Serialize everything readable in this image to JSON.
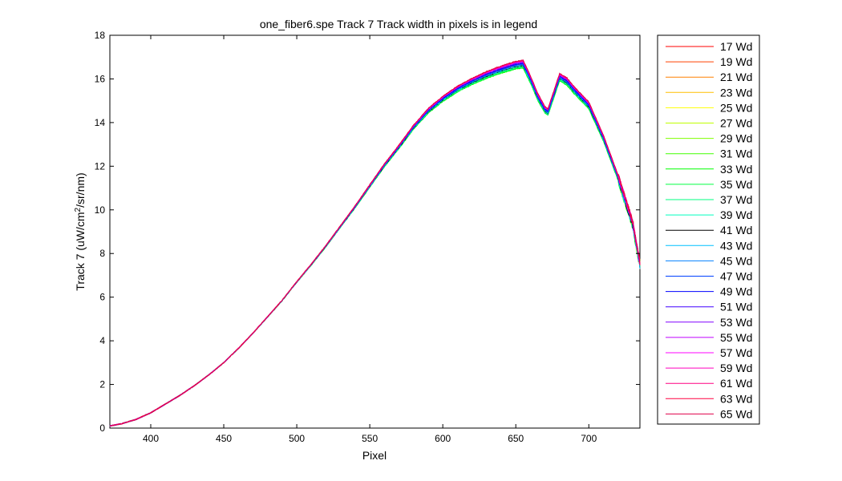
{
  "chart_data": {
    "type": "line",
    "title": "one_fiber6.spe   Track 7     Track width in pixels is in legend",
    "xlabel": "Pixel",
    "ylabel": "Track 7 (uW/cm²/sr/nm)",
    "ylabel_parts": {
      "main": "Track 7 (uW/cm",
      "sup": "2",
      "tail": "/sr/nm)"
    },
    "xlim": [
      372,
      735
    ],
    "ylim": [
      0,
      18
    ],
    "xticks": [
      400,
      450,
      500,
      550,
      600,
      650,
      700
    ],
    "yticks": [
      0,
      2,
      4,
      6,
      8,
      10,
      12,
      14,
      16,
      18
    ],
    "grid": false,
    "legend_position": "outside-right",
    "base_curve": {
      "x": [
        372,
        380,
        390,
        400,
        410,
        420,
        430,
        440,
        450,
        460,
        470,
        480,
        490,
        500,
        510,
        520,
        530,
        540,
        550,
        560,
        570,
        580,
        590,
        600,
        610,
        620,
        630,
        640,
        650,
        655,
        660,
        665,
        670,
        672,
        675,
        680,
        685,
        690,
        700,
        710,
        720,
        730,
        735
      ],
      "y": [
        0.1,
        0.2,
        0.4,
        0.7,
        1.1,
        1.5,
        1.95,
        2.45,
        3.0,
        3.65,
        4.35,
        5.1,
        5.85,
        6.7,
        7.5,
        8.35,
        9.25,
        10.15,
        11.1,
        12.05,
        12.9,
        13.8,
        14.55,
        15.1,
        15.55,
        15.9,
        16.2,
        16.45,
        16.65,
        16.7,
        16.0,
        15.2,
        14.6,
        14.5,
        15.1,
        16.1,
        15.9,
        15.5,
        14.8,
        13.3,
        11.5,
        9.4,
        7.5
      ]
    },
    "series": [
      {
        "name": "17 Wd",
        "color": "#ff0000",
        "offset": 0.0
      },
      {
        "name": "19 Wd",
        "color": "#ff4000",
        "offset": -0.02
      },
      {
        "name": "21 Wd",
        "color": "#ff8000",
        "offset": -0.04
      },
      {
        "name": "23 Wd",
        "color": "#ffbf00",
        "offset": -0.06
      },
      {
        "name": "25 Wd",
        "color": "#ffff00",
        "offset": -0.08
      },
      {
        "name": "27 Wd",
        "color": "#bfff00",
        "offset": -0.1
      },
      {
        "name": "29 Wd",
        "color": "#80ff00",
        "offset": -0.12
      },
      {
        "name": "31 Wd",
        "color": "#40ff00",
        "offset": -0.14
      },
      {
        "name": "33 Wd",
        "color": "#00ff00",
        "offset": -0.15
      },
      {
        "name": "35 Wd",
        "color": "#00ff40",
        "offset": -0.13
      },
      {
        "name": "37 Wd",
        "color": "#00ff80",
        "offset": -0.11
      },
      {
        "name": "39 Wd",
        "color": "#00ffbf",
        "offset": -0.09
      },
      {
        "name": "41 Wd",
        "color": "#000000",
        "offset": -0.07
      },
      {
        "name": "43 Wd",
        "color": "#00bfff",
        "offset": -0.05
      },
      {
        "name": "45 Wd",
        "color": "#0080ff",
        "offset": -0.03
      },
      {
        "name": "47 Wd",
        "color": "#0040ff",
        "offset": -0.01
      },
      {
        "name": "49 Wd",
        "color": "#0000ff",
        "offset": 0.01
      },
      {
        "name": "51 Wd",
        "color": "#4000ff",
        "offset": 0.03
      },
      {
        "name": "53 Wd",
        "color": "#8000ff",
        "offset": 0.05
      },
      {
        "name": "55 Wd",
        "color": "#bf00ff",
        "offset": 0.07
      },
      {
        "name": "57 Wd",
        "color": "#ff00ff",
        "offset": 0.08
      },
      {
        "name": "59 Wd",
        "color": "#ff00bf",
        "offset": 0.09
      },
      {
        "name": "61 Wd",
        "color": "#ff0080",
        "offset": 0.1
      },
      {
        "name": "63 Wd",
        "color": "#ff0040",
        "offset": 0.11
      },
      {
        "name": "65 Wd",
        "color": "#e0004a",
        "offset": 0.12
      }
    ]
  }
}
